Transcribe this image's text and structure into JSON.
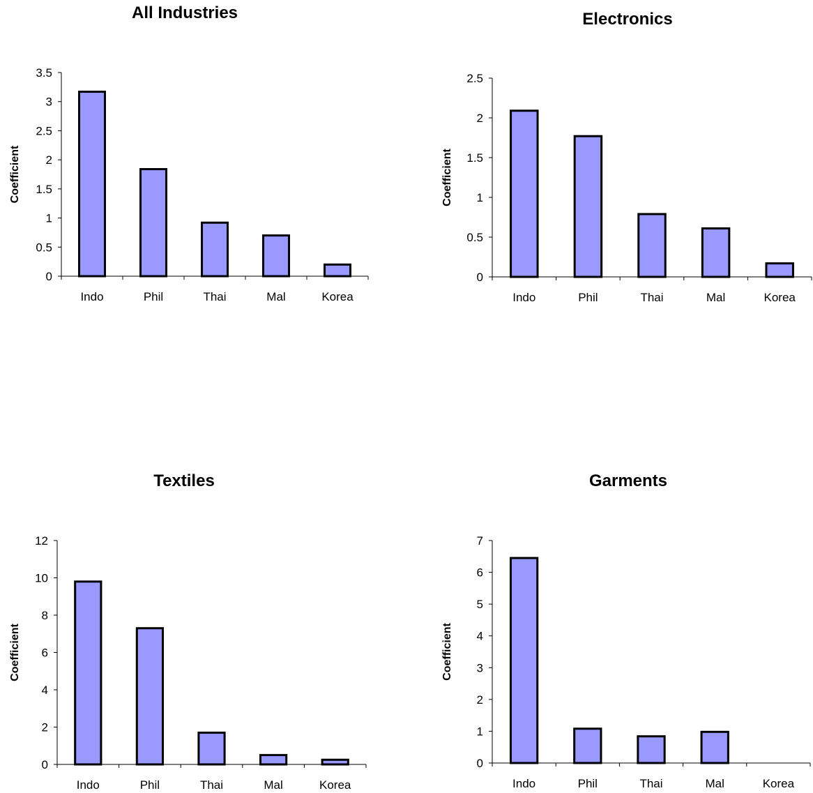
{
  "chart_data": [
    {
      "type": "bar",
      "title": "All Industries",
      "xlabel": "",
      "ylabel": "Coefficient",
      "categories": [
        "Indo",
        "Phil",
        "Thai",
        "Mal",
        "Korea"
      ],
      "values": [
        3.17,
        1.84,
        0.92,
        0.7,
        0.2
      ],
      "ylim": [
        0,
        3.5
      ],
      "yticks": [
        "0",
        "0.5",
        "1",
        "1.5",
        "2",
        "2.5",
        "3",
        "3.5"
      ],
      "bar_color": "#9999ff",
      "grid": false
    },
    {
      "type": "bar",
      "title": "Electronics",
      "xlabel": "",
      "ylabel": "Coefficient",
      "categories": [
        "Indo",
        "Phil",
        "Thai",
        "Mal",
        "Korea"
      ],
      "values": [
        2.09,
        1.77,
        0.79,
        0.61,
        0.17
      ],
      "ylim": [
        0,
        2.5
      ],
      "yticks": [
        "0",
        "0.5",
        "1",
        "1.5",
        "2",
        "2.5"
      ],
      "bar_color": "#9999ff",
      "grid": false
    },
    {
      "type": "bar",
      "title": "Textiles",
      "xlabel": "",
      "ylabel": "Coefficient",
      "categories": [
        "Indo",
        "Phil",
        "Thai",
        "Mal",
        "Korea"
      ],
      "values": [
        9.8,
        7.3,
        1.7,
        0.5,
        0.25
      ],
      "ylim": [
        0,
        12
      ],
      "yticks": [
        "0",
        "2",
        "4",
        "6",
        "8",
        "10",
        "12"
      ],
      "bar_color": "#9999ff",
      "grid": false
    },
    {
      "type": "bar",
      "title": "Garments",
      "xlabel": "",
      "ylabel": "Coefficient",
      "categories": [
        "Indo",
        "Phil",
        "Thai",
        "Mal",
        "Korea"
      ],
      "values": [
        6.45,
        1.08,
        0.84,
        0.98,
        0
      ],
      "ylim": [
        0,
        7
      ],
      "yticks": [
        "0",
        "1",
        "2",
        "3",
        "4",
        "5",
        "6",
        "7"
      ],
      "bar_color": "#9999ff",
      "grid": false
    }
  ]
}
